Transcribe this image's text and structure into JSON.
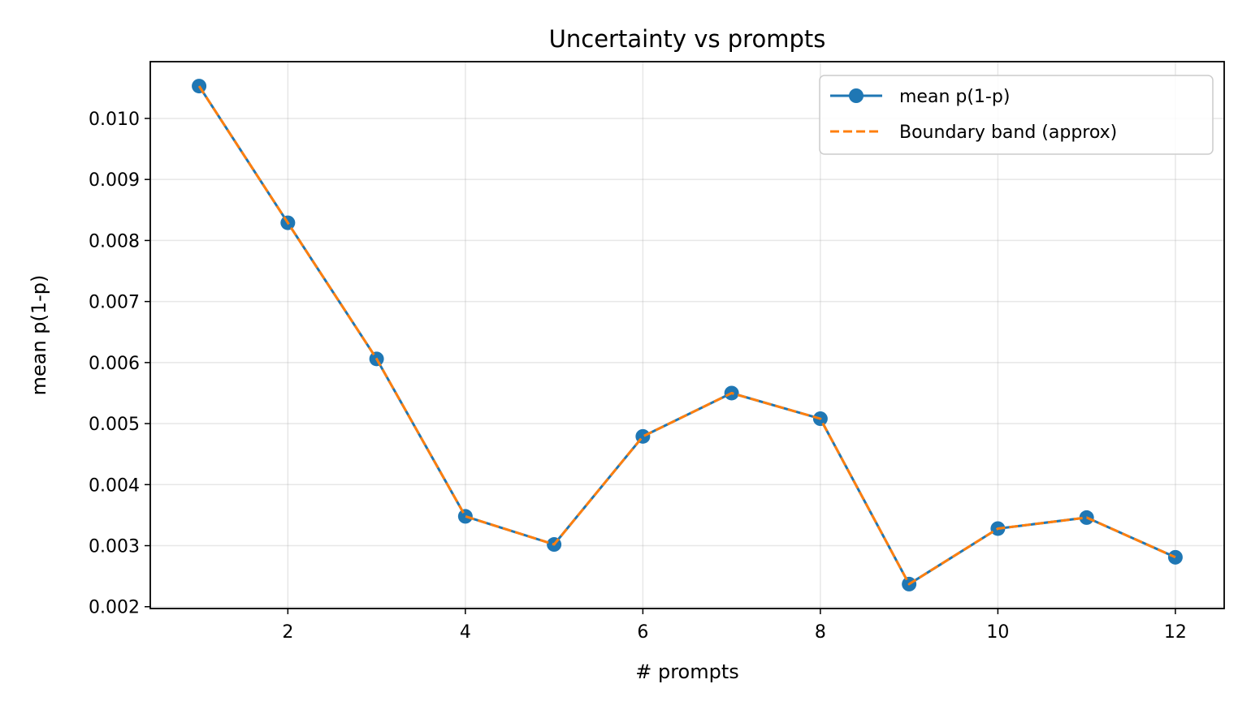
{
  "chart_data": {
    "type": "line",
    "title": "Uncertainty vs prompts",
    "xlabel": "# prompts",
    "ylabel": "mean p(1-p)",
    "x": [
      1,
      2,
      3,
      4,
      5,
      6,
      7,
      8,
      9,
      10,
      11,
      12
    ],
    "series": [
      {
        "name": "mean p(1-p)",
        "color": "#1f77b4",
        "style": "solid",
        "marker": "circle",
        "values": [
          0.01053,
          0.00829,
          0.00606,
          0.00348,
          0.00302,
          0.00479,
          0.0055,
          0.00508,
          0.00237,
          0.00328,
          0.00346,
          0.00281
        ]
      },
      {
        "name": "Boundary band (approx)",
        "color": "#ff7f0e",
        "style": "dashed",
        "marker": "none",
        "values": [
          0.01053,
          0.00829,
          0.00606,
          0.00348,
          0.00302,
          0.00479,
          0.0055,
          0.00508,
          0.00237,
          0.00328,
          0.00346,
          0.00281
        ]
      }
    ],
    "xlim": [
      0.45,
      12.55
    ],
    "ylim": [
      0.00197,
      0.01093
    ],
    "xticks": [
      2,
      4,
      6,
      8,
      10,
      12
    ],
    "xtick_labels": [
      "2",
      "4",
      "6",
      "8",
      "10",
      "12"
    ],
    "yticks": [
      0.002,
      0.003,
      0.004,
      0.005,
      0.006,
      0.007,
      0.008,
      0.009,
      0.01
    ],
    "ytick_labels": [
      "0.002",
      "0.003",
      "0.004",
      "0.005",
      "0.006",
      "0.007",
      "0.008",
      "0.009",
      "0.010"
    ],
    "grid": true,
    "legend_position": "top-right"
  }
}
